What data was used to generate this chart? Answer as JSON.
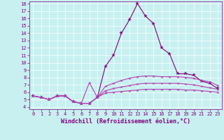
{
  "xlabel": "Windchill (Refroidissement éolien,°C)",
  "x": [
    0,
    1,
    2,
    3,
    4,
    5,
    6,
    7,
    8,
    9,
    10,
    11,
    12,
    13,
    14,
    15,
    16,
    17,
    18,
    19,
    20,
    21,
    22,
    23
  ],
  "line1": [
    5.5,
    5.3,
    5.0,
    5.5,
    5.5,
    4.7,
    4.5,
    4.5,
    5.3,
    9.5,
    11.0,
    14.0,
    15.8,
    18.0,
    16.3,
    15.3,
    12.0,
    11.2,
    8.5,
    8.5,
    8.3,
    7.5,
    7.2,
    6.5
  ],
  "line2": [
    5.5,
    5.3,
    5.0,
    5.5,
    5.5,
    4.7,
    4.5,
    7.3,
    5.3,
    6.8,
    7.2,
    7.6,
    7.9,
    8.1,
    8.2,
    8.2,
    8.1,
    8.1,
    8.1,
    8.0,
    7.9,
    7.6,
    7.4,
    6.9
  ],
  "line3": [
    5.5,
    5.3,
    5.0,
    5.5,
    5.5,
    4.7,
    4.5,
    4.5,
    5.3,
    6.2,
    6.5,
    6.7,
    6.9,
    7.1,
    7.2,
    7.2,
    7.2,
    7.2,
    7.2,
    7.1,
    7.0,
    6.8,
    6.6,
    6.4
  ],
  "line4": [
    5.5,
    5.3,
    5.0,
    5.5,
    5.5,
    4.7,
    4.5,
    4.5,
    5.3,
    5.9,
    6.0,
    6.1,
    6.2,
    6.3,
    6.4,
    6.4,
    6.4,
    6.4,
    6.4,
    6.3,
    6.3,
    6.2,
    6.1,
    6.0
  ],
  "line_color1": "#800080",
  "line_color2": "#b040b0",
  "line_color3": "#b040b0",
  "line_color4": "#b040b0",
  "bg_color": "#c8f0f0",
  "grid_color": "#ffffff",
  "ylim_min": 4,
  "ylim_max": 18,
  "xlim_min": 0,
  "xlim_max": 23,
  "yticks": [
    4,
    5,
    6,
    7,
    8,
    9,
    10,
    11,
    12,
    13,
    14,
    15,
    16,
    17,
    18
  ],
  "xticks": [
    0,
    1,
    2,
    3,
    4,
    5,
    6,
    7,
    8,
    9,
    10,
    11,
    12,
    13,
    14,
    15,
    16,
    17,
    18,
    19,
    20,
    21,
    22,
    23
  ],
  "marker": "*",
  "marker_size1": 4,
  "marker_size2": 3,
  "line_width": 0.8,
  "tick_color": "#800080",
  "label_color": "#800080",
  "tick_fontsize": 5.0,
  "xlabel_fontsize": 6.0
}
